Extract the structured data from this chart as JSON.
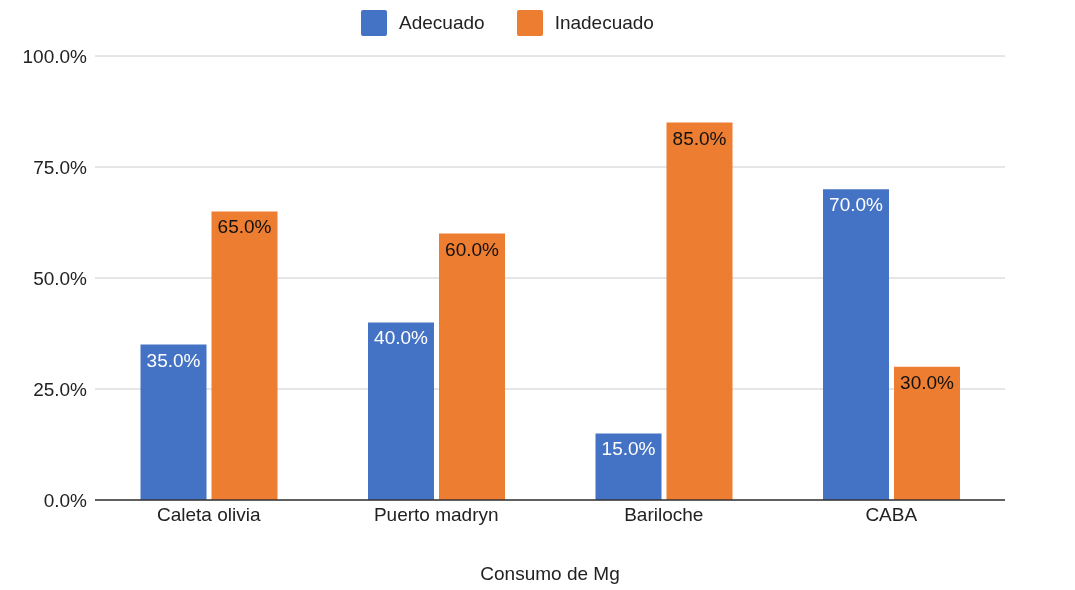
{
  "chart_data": {
    "type": "bar",
    "xlabel": "Consumo de Mg",
    "categories": [
      "Caleta olivia",
      "Puerto madryn",
      "Bariloche",
      "CABA"
    ],
    "series": [
      {
        "name": "Adecuado",
        "color": "#4472c4",
        "values": [
          35,
          40,
          15,
          70
        ],
        "value_labels": [
          "35.0%",
          "40.0%",
          "15.0%",
          "70.0%"
        ]
      },
      {
        "name": "Inadecuado",
        "color": "#ed7d31",
        "values": [
          65,
          60,
          85,
          30
        ],
        "value_labels": [
          "65.0%",
          "60.0%",
          "85.0%",
          "30.0%"
        ]
      }
    ],
    "ylim": [
      0,
      100
    ],
    "yticks": [
      {
        "value": 0,
        "label": "0.0%"
      },
      {
        "value": 25,
        "label": "25.0%"
      },
      {
        "value": 50,
        "label": "50.0%"
      },
      {
        "value": 75,
        "label": "75.0%"
      },
      {
        "value": 100,
        "label": "100.0%"
      }
    ],
    "grid": "y",
    "legend": "top"
  }
}
